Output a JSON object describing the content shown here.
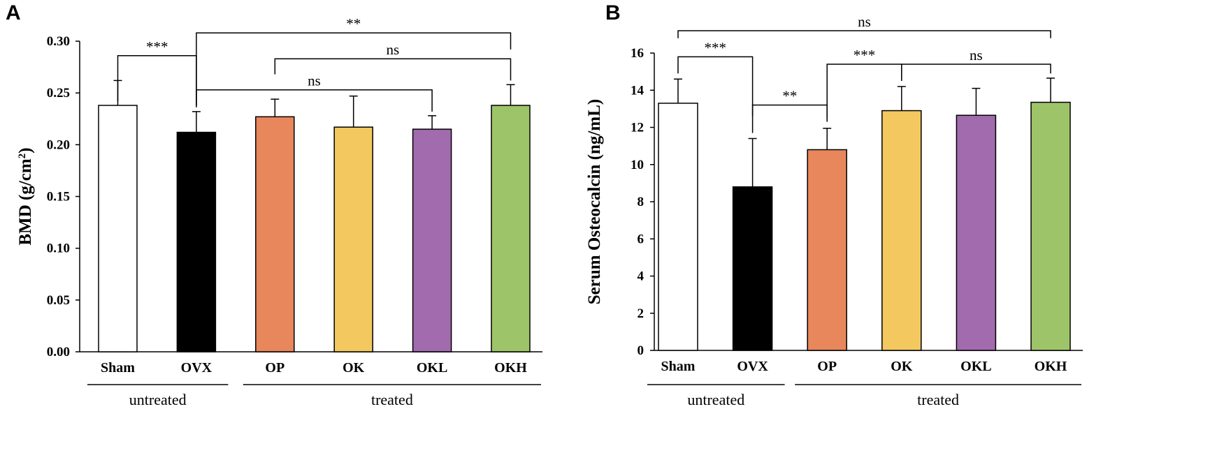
{
  "chart_data": [
    {
      "panel": "A",
      "type": "bar",
      "title": "",
      "xlabel": "",
      "ylabel": "BMD (g/cm",
      "ylabel_sup": "2",
      "ylabel_close": ")",
      "ylim": [
        0,
        0.3
      ],
      "yticks": [
        "0.00",
        "0.05",
        "0.10",
        "0.15",
        "0.20",
        "0.25",
        "0.30"
      ],
      "categories": [
        "Sham",
        "OVX",
        "OP",
        "OK",
        "OKL",
        "OKH"
      ],
      "values": [
        0.238,
        0.212,
        0.227,
        0.217,
        0.215,
        0.238
      ],
      "errors": [
        0.024,
        0.02,
        0.017,
        0.03,
        0.013,
        0.02
      ],
      "colors": [
        "#ffffff",
        "#000000",
        "#e8865c",
        "#f2c85f",
        "#a26bae",
        "#9ec46a"
      ],
      "groups": [
        {
          "label": "untreated",
          "from": 0,
          "to": 1
        },
        {
          "label": "treated",
          "from": 2,
          "to": 5
        }
      ],
      "significance": [
        {
          "from": 0,
          "to": 1,
          "label": "***",
          "y_from": 0.242,
          "y_to": 0.236,
          "top": 0.286
        },
        {
          "from": 1,
          "to": 5,
          "label": "**",
          "y_from": 0.238,
          "y_to": 0.292,
          "top": 0.308
        },
        {
          "from": 2,
          "to": 5,
          "label": "ns",
          "y_from": 0.268,
          "y_to": 0.262,
          "top": 0.283
        },
        {
          "from": 1,
          "to": 4,
          "label": "ns",
          "y_from": 0.238,
          "y_to": 0.232,
          "top": 0.253
        }
      ]
    },
    {
      "panel": "B",
      "type": "bar",
      "title": "",
      "xlabel": "",
      "ylabel": "Serum Osteocalcin (ng/mL)",
      "ylabel_sup": "",
      "ylabel_close": "",
      "ylim": [
        0,
        16
      ],
      "yticks": [
        "0",
        "2",
        "4",
        "6",
        "8",
        "10",
        "12",
        "14",
        "16"
      ],
      "categories": [
        "Sham",
        "OVX",
        "OP",
        "OK",
        "OKL",
        "OKH"
      ],
      "values": [
        13.3,
        8.8,
        10.8,
        12.9,
        12.65,
        13.35
      ],
      "errors": [
        1.3,
        2.6,
        1.15,
        1.3,
        1.45,
        1.3
      ],
      "colors": [
        "#ffffff",
        "#000000",
        "#e8865c",
        "#f2c85f",
        "#a26bae",
        "#9ec46a"
      ],
      "groups": [
        {
          "label": "untreated",
          "from": 0,
          "to": 1
        },
        {
          "label": "treated",
          "from": 2,
          "to": 5
        }
      ],
      "significance": [
        {
          "from": 0,
          "to": 5,
          "label": "ns",
          "y_from": 16.8,
          "y_to": 16.8,
          "top": 17.2
        },
        {
          "from": 0,
          "to": 1,
          "label": "***",
          "y_from": 14.9,
          "y_to": 11.7,
          "top": 15.8
        },
        {
          "from": 1,
          "to": 2,
          "label": "**",
          "y_from": 12.6,
          "y_to": 12.3,
          "top": 13.2
        },
        {
          "from": 2,
          "to": 3,
          "label": "***",
          "y_from": 12.5,
          "y_to": 14.5,
          "top": 15.4
        },
        {
          "from": 3,
          "to": 5,
          "label": "ns",
          "y_from": 14.6,
          "y_to": 14.9,
          "top": 15.4
        }
      ]
    }
  ]
}
